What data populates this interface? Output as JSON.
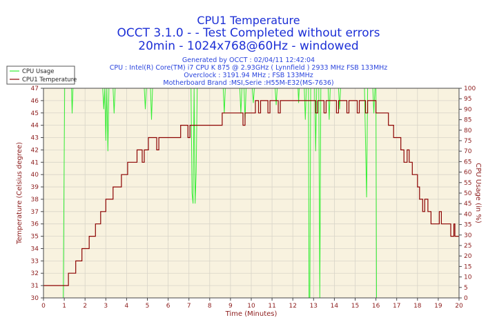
{
  "titles": {
    "line1": "CPU1 Temperature",
    "line2": "OCCT 3.1.0 -  - Test Completed without errors",
    "line3": "20min - 1024x768@60Hz - windowed"
  },
  "info": {
    "generated": "Generated by OCCT : 02/04/11 12:42:04",
    "cpu": "CPU : Intel(R) Core(TM) i7 CPU K 875 @ 2.93GHz ( Lynnfield ) 2933 MHz FSB 133MHz",
    "overclock": "Overclock : 3191.94 MHz ; FSB 133MHz",
    "motherboard": "Motherboard Brand :MSI,Serie :H55M-E32(MS-7636)"
  },
  "colors": {
    "temperature": "#8b0000",
    "cpu_usage": "#33ee33",
    "plot_bg": "#f8f2df",
    "grid": "#d8d4c8",
    "axis_text": "#8b1a1a"
  },
  "chart_data": {
    "type": "line",
    "title": "CPU1 Temperature",
    "xlabel": "Time (Minutes)",
    "ylabel": "Temperature (Celsius degree)",
    "y2label": "CPU Usage (in %)",
    "xlim": [
      0,
      20
    ],
    "ylim": [
      30,
      47
    ],
    "y2lim": [
      0,
      100
    ],
    "x_ticks": [
      "0",
      "1",
      "2",
      "3",
      "4",
      "5",
      "6",
      "7",
      "8",
      "9",
      "10",
      "11",
      "12",
      "13",
      "14",
      "15",
      "16",
      "17",
      "18",
      "19",
      "20"
    ],
    "y_ticks": [
      "30",
      "31",
      "32",
      "33",
      "34",
      "35",
      "36",
      "37",
      "38",
      "39",
      "40",
      "41",
      "42",
      "43",
      "44",
      "45",
      "46",
      "47"
    ],
    "y2_ticks": [
      "0",
      "5",
      "10",
      "15",
      "20",
      "25",
      "30",
      "35",
      "40",
      "45",
      "50",
      "55",
      "60",
      "65",
      "70",
      "75",
      "80",
      "85",
      "90",
      "95",
      "100"
    ],
    "legend": [
      "CPU Usage",
      "CPU1 Temperature"
    ],
    "legend_position": "top-left",
    "series": [
      {
        "name": "CPU1 Temperature",
        "axis": "left",
        "points": [
          [
            0,
            31
          ],
          [
            1.2,
            31
          ],
          [
            1.2,
            32
          ],
          [
            1.55,
            32
          ],
          [
            1.55,
            33
          ],
          [
            1.85,
            33
          ],
          [
            1.85,
            34
          ],
          [
            2.2,
            34
          ],
          [
            2.2,
            35
          ],
          [
            2.5,
            35
          ],
          [
            2.5,
            36
          ],
          [
            2.75,
            36
          ],
          [
            2.75,
            37
          ],
          [
            3,
            37
          ],
          [
            3,
            38
          ],
          [
            3.35,
            38
          ],
          [
            3.35,
            39
          ],
          [
            3.75,
            39
          ],
          [
            3.75,
            40
          ],
          [
            4.05,
            40
          ],
          [
            4.05,
            41
          ],
          [
            4.5,
            41
          ],
          [
            4.5,
            42
          ],
          [
            4.75,
            42
          ],
          [
            4.75,
            41
          ],
          [
            4.85,
            41
          ],
          [
            4.85,
            42
          ],
          [
            5.05,
            42
          ],
          [
            5.05,
            43
          ],
          [
            5.45,
            43
          ],
          [
            5.45,
            42
          ],
          [
            5.55,
            42
          ],
          [
            5.55,
            43
          ],
          [
            6.6,
            43
          ],
          [
            6.6,
            44
          ],
          [
            6.95,
            44
          ],
          [
            6.95,
            43
          ],
          [
            7.05,
            43
          ],
          [
            7.05,
            44
          ],
          [
            8.6,
            44
          ],
          [
            8.6,
            45
          ],
          [
            9.6,
            45
          ],
          [
            9.6,
            44
          ],
          [
            9.7,
            44
          ],
          [
            9.7,
            45
          ],
          [
            10.2,
            45
          ],
          [
            10.2,
            46
          ],
          [
            10.35,
            46
          ],
          [
            10.35,
            45
          ],
          [
            10.45,
            45
          ],
          [
            10.45,
            46
          ],
          [
            10.8,
            46
          ],
          [
            10.8,
            45
          ],
          [
            10.9,
            45
          ],
          [
            10.9,
            46
          ],
          [
            11.3,
            46
          ],
          [
            11.3,
            45
          ],
          [
            11.4,
            45
          ],
          [
            11.4,
            46
          ],
          [
            13.1,
            46
          ],
          [
            13.1,
            45
          ],
          [
            13.2,
            45
          ],
          [
            13.2,
            46
          ],
          [
            13.5,
            46
          ],
          [
            13.5,
            45
          ],
          [
            13.6,
            45
          ],
          [
            13.6,
            46
          ],
          [
            14.1,
            46
          ],
          [
            14.1,
            45
          ],
          [
            14.2,
            45
          ],
          [
            14.2,
            46
          ],
          [
            14.6,
            46
          ],
          [
            14.6,
            45
          ],
          [
            14.7,
            45
          ],
          [
            14.7,
            46
          ],
          [
            15.1,
            46
          ],
          [
            15.1,
            45
          ],
          [
            15.2,
            45
          ],
          [
            15.2,
            46
          ],
          [
            15.5,
            46
          ],
          [
            15.5,
            45
          ],
          [
            15.6,
            45
          ],
          [
            15.6,
            46
          ],
          [
            16,
            46
          ],
          [
            16,
            45
          ],
          [
            16.6,
            45
          ],
          [
            16.6,
            44
          ],
          [
            16.85,
            44
          ],
          [
            16.85,
            43
          ],
          [
            17.2,
            43
          ],
          [
            17.2,
            42
          ],
          [
            17.35,
            42
          ],
          [
            17.35,
            41
          ],
          [
            17.5,
            41
          ],
          [
            17.5,
            42
          ],
          [
            17.6,
            42
          ],
          [
            17.6,
            41
          ],
          [
            17.75,
            41
          ],
          [
            17.75,
            40
          ],
          [
            18,
            40
          ],
          [
            18,
            39
          ],
          [
            18.1,
            39
          ],
          [
            18.1,
            38
          ],
          [
            18.25,
            38
          ],
          [
            18.25,
            37
          ],
          [
            18.35,
            37
          ],
          [
            18.35,
            38
          ],
          [
            18.5,
            38
          ],
          [
            18.5,
            37
          ],
          [
            18.65,
            37
          ],
          [
            18.65,
            36
          ],
          [
            19.05,
            36
          ],
          [
            19.05,
            37
          ],
          [
            19.15,
            37
          ],
          [
            19.15,
            36
          ],
          [
            19.6,
            36
          ],
          [
            19.6,
            35
          ],
          [
            19.75,
            35
          ],
          [
            19.75,
            36
          ],
          [
            19.8,
            36
          ],
          [
            19.8,
            35
          ],
          [
            20,
            35
          ]
        ]
      },
      {
        "name": "CPU Usage",
        "axis": "right",
        "points": [
          [
            0.95,
            0
          ],
          [
            1.02,
            100
          ],
          [
            1.35,
            100
          ],
          [
            1.38,
            88
          ],
          [
            1.42,
            100
          ],
          [
            2.85,
            100
          ],
          [
            2.9,
            90
          ],
          [
            2.95,
            100
          ],
          [
            3.0,
            75
          ],
          [
            3.05,
            100
          ],
          [
            3.1,
            70
          ],
          [
            3.15,
            100
          ],
          [
            3.35,
            100
          ],
          [
            3.4,
            88
          ],
          [
            3.45,
            100
          ],
          [
            4.85,
            100
          ],
          [
            4.9,
            90
          ],
          [
            4.95,
            100
          ],
          [
            5.15,
            100
          ],
          [
            5.2,
            85
          ],
          [
            5.25,
            100
          ],
          [
            7.1,
            100
          ],
          [
            7.15,
            50
          ],
          [
            7.2,
            45
          ],
          [
            7.25,
            100
          ],
          [
            7.3,
            45
          ],
          [
            7.35,
            60
          ],
          [
            7.4,
            100
          ],
          [
            8.65,
            100
          ],
          [
            8.7,
            88
          ],
          [
            8.75,
            100
          ],
          [
            9.45,
            100
          ],
          [
            9.5,
            88
          ],
          [
            9.55,
            100
          ],
          [
            9.65,
            100
          ],
          [
            9.7,
            85
          ],
          [
            9.75,
            100
          ],
          [
            10.05,
            100
          ],
          [
            10.1,
            93
          ],
          [
            10.15,
            100
          ],
          [
            11.15,
            100
          ],
          [
            11.2,
            92
          ],
          [
            11.25,
            100
          ],
          [
            12.25,
            100
          ],
          [
            12.28,
            93
          ],
          [
            12.31,
            100
          ],
          [
            12.55,
            100
          ],
          [
            12.6,
            85
          ],
          [
            12.65,
            100
          ],
          [
            12.75,
            100
          ],
          [
            12.78,
            0
          ],
          [
            12.82,
            0
          ],
          [
            12.86,
            100
          ],
          [
            13.05,
            100
          ],
          [
            13.1,
            70
          ],
          [
            13.15,
            100
          ],
          [
            13.25,
            100
          ],
          [
            13.3,
            0
          ],
          [
            13.35,
            100
          ],
          [
            13.7,
            100
          ],
          [
            13.75,
            85
          ],
          [
            13.8,
            100
          ],
          [
            14.2,
            100
          ],
          [
            14.25,
            90
          ],
          [
            14.3,
            100
          ],
          [
            15.45,
            100
          ],
          [
            15.5,
            75
          ],
          [
            15.55,
            48
          ],
          [
            15.6,
            100
          ],
          [
            15.85,
            100
          ],
          [
            15.9,
            88
          ],
          [
            15.95,
            100
          ],
          [
            16.0,
            100
          ],
          [
            16.03,
            0
          ],
          [
            16.06,
            0
          ]
        ]
      }
    ]
  }
}
